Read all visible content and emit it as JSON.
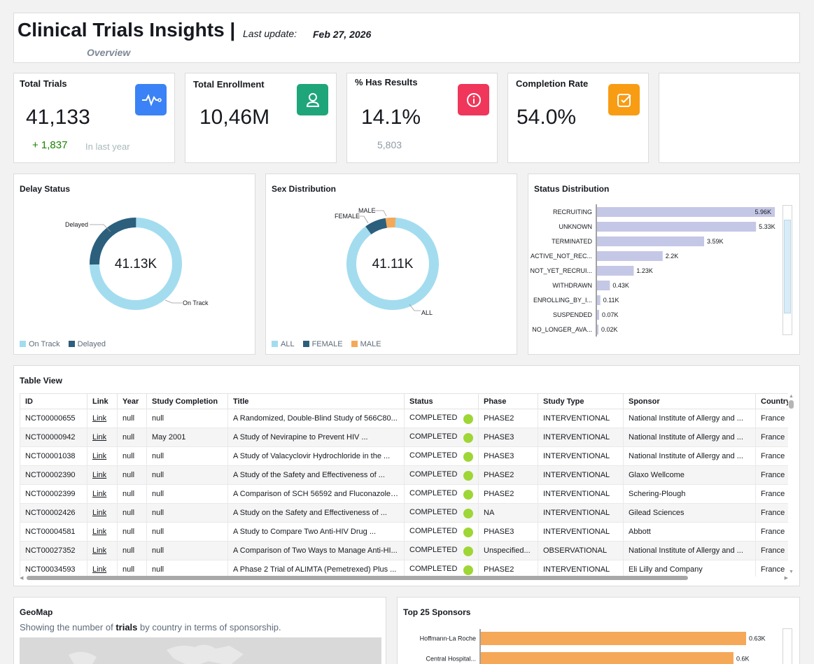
{
  "header": {
    "title": "Clinical Trials Insights |",
    "last_update_label": "Last update:",
    "last_update_date": "Feb 27, 2026",
    "subtitle": "Overview"
  },
  "kpis": {
    "total_trials": {
      "title": "Total Trials",
      "value": "41,133",
      "delta": "+ 1,837",
      "delta_note": "In last year",
      "icon": "heartbeat-icon",
      "color": "#3b82f6"
    },
    "total_enrollment": {
      "title": "Total Enrollment",
      "value": "10,46M",
      "icon": "user-icon",
      "color": "#1fa57a"
    },
    "has_results": {
      "title": "% Has Results",
      "value": "14.1%",
      "sub": "5,803",
      "icon": "info-icon",
      "color": "#f0365a"
    },
    "completion_rate": {
      "title": "Completion Rate",
      "value": "54.0%",
      "icon": "checkbox-icon",
      "color": "#f89c14"
    }
  },
  "delay_status": {
    "title": "Delay Status",
    "center": "41.13K",
    "label_delayed": "Delayed",
    "label_ontrack": "On Track",
    "legend": [
      "On Track",
      "Delayed"
    ],
    "colors": {
      "on_track": "#a3dcef",
      "delayed": "#2c5f7c"
    }
  },
  "sex_distribution": {
    "title": "Sex Distribution",
    "center": "41.11K",
    "label_female": "FEMALE",
    "label_male": "MALE",
    "label_all": "ALL",
    "legend": [
      "ALL",
      "FEMALE",
      "MALE"
    ],
    "colors": {
      "all": "#a3dcef",
      "female": "#2c5f7c",
      "male": "#f5a857"
    }
  },
  "status_distribution": {
    "title": "Status Distribution",
    "color": "#c5c7e6",
    "chart_data": {
      "type": "bar",
      "categories": [
        "RECRUITING",
        "UNKNOWN",
        "TERMINATED",
        "ACTIVE_NOT_REC...",
        "NOT_YET_RECRUI...",
        "WITHDRAWN",
        "ENROLLING_BY_I...",
        "SUSPENDED",
        "NO_LONGER_AVA..."
      ],
      "values": [
        5.96,
        5.33,
        3.59,
        2.2,
        1.23,
        0.43,
        0.11,
        0.07,
        0.02
      ],
      "labels": [
        "5.96K",
        "5.33K",
        "3.59K",
        "2.2K",
        "1.23K",
        "0.43K",
        "0.11K",
        "0.07K",
        "0.02K"
      ],
      "orientation": "horizontal"
    }
  },
  "table": {
    "title": "Table View",
    "columns": [
      "ID",
      "Link",
      "Year",
      "Study Completion",
      "Title",
      "Status",
      "Phase",
      "Study Type",
      "Sponsor",
      "Country"
    ],
    "rows": [
      [
        "NCT00000655",
        "Link",
        "null",
        "null",
        "A Randomized, Double-Blind Study of 566C80...",
        "COMPLETED",
        "PHASE2",
        "INTERVENTIONAL",
        "National Institute of Allergy and ...",
        "France"
      ],
      [
        "NCT00000942",
        "Link",
        "null",
        "May 2001",
        "A Study of Nevirapine to Prevent HIV ...",
        "COMPLETED",
        "PHASE3",
        "INTERVENTIONAL",
        "National Institute of Allergy and ...",
        "France"
      ],
      [
        "NCT00001038",
        "Link",
        "null",
        "null",
        "A Study of Valacyclovir Hydrochloride in the ...",
        "COMPLETED",
        "PHASE3",
        "INTERVENTIONAL",
        "National Institute of Allergy and ...",
        "France"
      ],
      [
        "NCT00002390",
        "Link",
        "null",
        "null",
        "A Study of the Safety and Effectiveness of ...",
        "COMPLETED",
        "PHASE2",
        "INTERVENTIONAL",
        "Glaxo Wellcome",
        "France"
      ],
      [
        "NCT00002399",
        "Link",
        "null",
        "null",
        "A Comparison of SCH 56592 and Fluconazole ...",
        "COMPLETED",
        "PHASE2",
        "INTERVENTIONAL",
        "Schering-Plough",
        "France"
      ],
      [
        "NCT00002426",
        "Link",
        "null",
        "null",
        "A Study on the Safety and Effectiveness of ...",
        "COMPLETED",
        "NA",
        "INTERVENTIONAL",
        "Gilead Sciences",
        "France"
      ],
      [
        "NCT00004581",
        "Link",
        "null",
        "null",
        "A Study to Compare Two Anti-HIV Drug ...",
        "COMPLETED",
        "PHASE3",
        "INTERVENTIONAL",
        "Abbott",
        "France"
      ],
      [
        "NCT00027352",
        "Link",
        "null",
        "null",
        "A Comparison of Two Ways to Manage Anti-HI...",
        "COMPLETED",
        "Unspecified...",
        "OBSERVATIONAL",
        "National Institute of Allergy and ...",
        "France"
      ],
      [
        "NCT00034593",
        "Link",
        "null",
        "null",
        "A Phase 2 Trial of ALIMTA (Pemetrexed) Plus ...",
        "COMPLETED",
        "PHASE2",
        "INTERVENTIONAL",
        "Eli Lilly and Company",
        "France"
      ]
    ]
  },
  "geomap": {
    "title": "GeoMap",
    "desc_before": "Showing the number of ",
    "desc_bold": "trials",
    "desc_after": " by country in terms of sponsorship."
  },
  "top_sponsors": {
    "title": "Top 25 Sponsors",
    "color": "#f5a857",
    "chart_data": {
      "type": "bar",
      "categories": [
        "Hoffmann-La Roche",
        "Central Hospital..."
      ],
      "values": [
        0.63,
        0.6
      ],
      "labels": [
        "0.63K",
        "0.6K"
      ],
      "orientation": "horizontal"
    }
  }
}
